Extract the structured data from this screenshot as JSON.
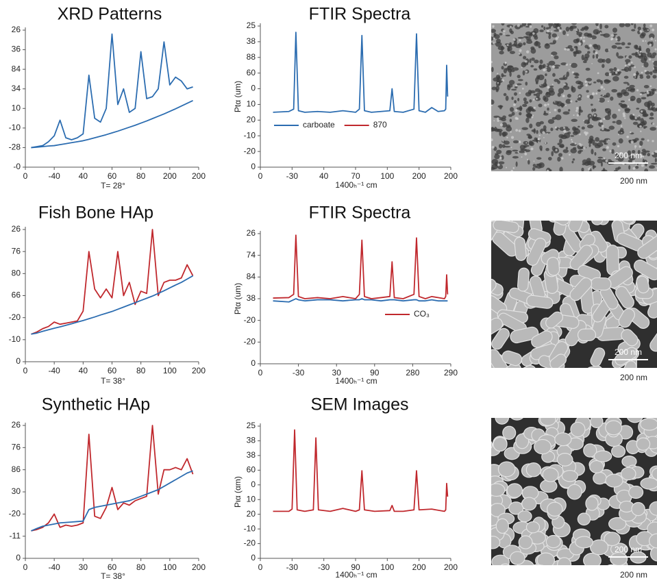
{
  "chart_data": [
    {
      "type": "line",
      "title": "XRD Patterns",
      "xlabel": "T= 28°",
      "x": [
        0.2,
        0.4,
        0.6,
        0.8,
        1.0,
        1.2,
        1.4,
        1.6,
        1.8,
        2.0,
        2.2,
        2.4,
        2.6,
        2.8,
        3.0,
        3.2,
        3.4,
        3.6,
        3.8,
        4.0,
        4.2,
        4.4,
        4.6,
        4.8,
        5.0,
        5.2,
        5.4,
        5.6,
        5.8
      ],
      "series": [
        {
          "color": "#2b6cb0",
          "values": [
            1.0,
            1.05,
            1.1,
            1.3,
            1.6,
            2.4,
            1.5,
            1.4,
            1.5,
            1.7,
            4.7,
            2.5,
            2.3,
            3.0,
            6.8,
            3.2,
            4.0,
            2.8,
            3.0,
            5.9,
            3.5,
            3.6,
            4.0,
            6.4,
            4.2,
            4.6,
            4.4,
            4.0,
            4.1
          ]
        },
        {
          "color": "#2b6cb0",
          "values": [
            1.0,
            1.02,
            1.05,
            1.08,
            1.1,
            1.15,
            1.2,
            1.25,
            1.3,
            1.35,
            1.42,
            1.5,
            1.58,
            1.66,
            1.75,
            1.84,
            1.94,
            2.04,
            2.14,
            2.25,
            2.36,
            2.48,
            2.6,
            2.72,
            2.85,
            2.98,
            3.12,
            3.26,
            3.4
          ]
        }
      ],
      "xlim": [
        0,
        6
      ],
      "ylim": [
        0,
        7
      ],
      "xticks": [
        {
          "value": 0,
          "label": "0"
        },
        {
          "value": 1,
          "label": "-40"
        },
        {
          "value": 2,
          "label": "40"
        },
        {
          "value": 3,
          "label": "60"
        },
        {
          "value": 4,
          "label": "80"
        },
        {
          "value": 5,
          "label": "200"
        },
        {
          "value": 6,
          "label": "200"
        }
      ],
      "yticks": [
        {
          "value": 0,
          "label": "-0"
        },
        {
          "value": 1,
          "label": "-28"
        },
        {
          "value": 2,
          "label": "-10"
        },
        {
          "value": 3,
          "label": "10"
        },
        {
          "value": 4,
          "label": "34"
        },
        {
          "value": 5,
          "label": "84"
        },
        {
          "value": 6,
          "label": "36"
        },
        {
          "value": 7,
          "label": "26"
        }
      ]
    },
    {
      "type": "line",
      "title": "FTIR Spectra",
      "xlabel": "1400ₕ⁻¹ cm",
      "ylabel": "Ptα (um)",
      "x": [
        0.4,
        0.9,
        1.05,
        1.12,
        1.2,
        1.4,
        1.8,
        2.2,
        2.6,
        3.0,
        3.12,
        3.2,
        3.28,
        3.5,
        3.8,
        4.08,
        4.15,
        4.22,
        4.5,
        4.84,
        4.92,
        5.0,
        5.2,
        5.4,
        5.6,
        5.8,
        5.84,
        5.87,
        5.9
      ],
      "series": [
        {
          "color": "#2b6cb0",
          "values": [
            3.5,
            3.55,
            3.7,
            8.6,
            3.6,
            3.5,
            3.55,
            3.5,
            3.6,
            3.5,
            3.7,
            8.4,
            3.6,
            3.5,
            3.55,
            3.6,
            5.0,
            3.55,
            3.5,
            3.7,
            8.5,
            3.6,
            3.5,
            3.8,
            3.55,
            3.6,
            3.7,
            6.5,
            4.5
          ]
        }
      ],
      "legend": [
        {
          "name": "carboate",
          "color": "#2b6cb0"
        },
        {
          "name": "870",
          "color": "#c0282d"
        }
      ],
      "xlim": [
        0,
        6
      ],
      "ylim": [
        0,
        9
      ],
      "xticks": [
        {
          "value": 0,
          "label": "0"
        },
        {
          "value": 1,
          "label": "-30"
        },
        {
          "value": 2,
          "label": "40"
        },
        {
          "value": 3,
          "label": "70"
        },
        {
          "value": 4,
          "label": "100"
        },
        {
          "value": 5,
          "label": "200"
        },
        {
          "value": 6,
          "label": "200"
        }
      ],
      "yticks": [
        {
          "value": 0,
          "label": "0"
        },
        {
          "value": 1,
          "label": "-20"
        },
        {
          "value": 2,
          "label": "-10"
        },
        {
          "value": 3,
          "label": "20"
        },
        {
          "value": 4,
          "label": "10"
        },
        {
          "value": 5,
          "label": "0"
        },
        {
          "value": 6,
          "label": "60"
        },
        {
          "value": 7,
          "label": "88"
        },
        {
          "value": 8,
          "label": "38"
        },
        {
          "value": 9,
          "label": "25"
        }
      ]
    },
    {
      "type": "line",
      "title": "Fish Bone HAp",
      "xlabel": "T= 38°",
      "x": [
        0.2,
        0.4,
        0.6,
        0.8,
        1.0,
        1.2,
        1.4,
        1.6,
        1.8,
        2.0,
        2.2,
        2.4,
        2.6,
        2.8,
        3.0,
        3.2,
        3.4,
        3.6,
        3.8,
        4.0,
        4.2,
        4.4,
        4.6,
        4.8,
        5.0,
        5.2,
        5.4,
        5.6,
        5.8
      ],
      "series": [
        {
          "color": "#c0282d",
          "values": [
            1.25,
            1.35,
            1.5,
            1.6,
            1.8,
            1.7,
            1.75,
            1.8,
            1.85,
            2.3,
            5.0,
            3.3,
            2.9,
            3.3,
            2.9,
            5.0,
            3.0,
            3.6,
            2.6,
            3.2,
            3.1,
            6.0,
            3.0,
            3.6,
            3.7,
            3.7,
            3.8,
            4.4,
            3.9
          ]
        },
        {
          "color": "#2b6cb0",
          "values": [
            1.25,
            1.3,
            1.38,
            1.45,
            1.52,
            1.58,
            1.65,
            1.72,
            1.8,
            1.87,
            1.95,
            2.03,
            2.12,
            2.2,
            2.28,
            2.38,
            2.48,
            2.58,
            2.68,
            2.78,
            2.88,
            2.98,
            3.1,
            3.22,
            3.35,
            3.48,
            3.6,
            3.75,
            3.9
          ]
        }
      ],
      "xlim": [
        0,
        6
      ],
      "ylim": [
        0,
        6
      ],
      "xticks": [
        {
          "value": 0,
          "label": "0"
        },
        {
          "value": 1,
          "label": "-40"
        },
        {
          "value": 2,
          "label": "40"
        },
        {
          "value": 3,
          "label": "60"
        },
        {
          "value": 4,
          "label": "80"
        },
        {
          "value": 5,
          "label": "100"
        },
        {
          "value": 6,
          "label": "200"
        }
      ],
      "yticks": [
        {
          "value": 0,
          "label": "0"
        },
        {
          "value": 1,
          "label": "-10"
        },
        {
          "value": 2,
          "label": "-20"
        },
        {
          "value": 3,
          "label": "66"
        },
        {
          "value": 4,
          "label": "80"
        },
        {
          "value": 5,
          "label": "76"
        },
        {
          "value": 6,
          "label": "26"
        }
      ]
    },
    {
      "type": "line",
      "title": "FTIR Spectra",
      "xlabel": "1400ₕ⁻¹ cm",
      "ylabel": "Ptα (um)",
      "x": [
        0.4,
        0.9,
        1.05,
        1.12,
        1.2,
        1.4,
        1.8,
        2.2,
        2.6,
        3.0,
        3.12,
        3.2,
        3.28,
        3.5,
        3.8,
        4.08,
        4.15,
        4.22,
        4.5,
        4.84,
        4.92,
        5.0,
        5.2,
        5.4,
        5.6,
        5.8,
        5.84,
        5.87,
        5.9
      ],
      "series": [
        {
          "color": "#2b6cb0",
          "values": [
            2.9,
            2.85,
            2.95,
            3.0,
            2.95,
            2.9,
            2.95,
            2.95,
            2.9,
            2.95,
            2.95,
            3.0,
            2.95,
            2.95,
            2.9,
            2.95,
            2.95,
            2.95,
            2.9,
            2.95,
            2.95,
            2.9,
            2.9,
            2.95,
            2.9,
            2.9,
            2.9,
            2.9,
            2.9
          ]
        },
        {
          "name": "CO₃",
          "color": "#c0282d",
          "values": [
            3.03,
            3.05,
            3.2,
            5.93,
            3.1,
            3.0,
            3.05,
            3.0,
            3.1,
            3.0,
            3.2,
            5.7,
            3.1,
            3.0,
            3.05,
            3.1,
            4.7,
            3.05,
            3.0,
            3.2,
            5.8,
            3.1,
            3.0,
            3.1,
            3.05,
            3.0,
            3.1,
            4.1,
            3.2
          ]
        }
      ],
      "xlim": [
        0,
        6
      ],
      "ylim": [
        0,
        6
      ],
      "xticks": [
        {
          "value": 0,
          "label": "0"
        },
        {
          "value": 1.2,
          "label": "-30"
        },
        {
          "value": 2.4,
          "label": "30"
        },
        {
          "value": 3.6,
          "label": "90"
        },
        {
          "value": 4.8,
          "label": "280"
        },
        {
          "value": 6,
          "label": "290"
        }
      ],
      "yticks": [
        {
          "value": 0,
          "label": "0"
        },
        {
          "value": 1,
          "label": "-20"
        },
        {
          "value": 2,
          "label": "-20"
        },
        {
          "value": 3,
          "label": "38"
        },
        {
          "value": 4,
          "label": "84"
        },
        {
          "value": 5,
          "label": "74"
        },
        {
          "value": 6,
          "label": "26"
        }
      ]
    },
    {
      "type": "line",
      "title": "Synthetic HAp",
      "xlabel": "T= 38°",
      "x": [
        0.2,
        0.4,
        0.6,
        0.8,
        1.0,
        1.2,
        1.4,
        1.6,
        1.8,
        2.0,
        2.2,
        2.4,
        2.6,
        2.8,
        3.0,
        3.2,
        3.4,
        3.6,
        3.8,
        4.0,
        4.2,
        4.4,
        4.6,
        4.8,
        5.0,
        5.2,
        5.4,
        5.6,
        5.8
      ],
      "series": [
        {
          "color": "#c0282d",
          "values": [
            1.24,
            1.3,
            1.4,
            1.6,
            2.0,
            1.4,
            1.5,
            1.45,
            1.5,
            1.6,
            5.6,
            1.9,
            1.8,
            2.3,
            3.2,
            2.2,
            2.5,
            2.4,
            2.6,
            2.7,
            2.8,
            6.0,
            2.9,
            4.0,
            4.0,
            4.1,
            4.0,
            4.5,
            3.8
          ]
        },
        {
          "color": "#2b6cb0",
          "values": [
            1.24,
            1.35,
            1.45,
            1.5,
            1.55,
            1.6,
            1.62,
            1.64,
            1.66,
            1.68,
            2.2,
            2.3,
            2.35,
            2.4,
            2.45,
            2.5,
            2.55,
            2.6,
            2.7,
            2.8,
            2.9,
            3.0,
            3.1,
            3.25,
            3.4,
            3.55,
            3.7,
            3.85,
            3.95
          ]
        }
      ],
      "xlim": [
        0,
        6
      ],
      "ylim": [
        0,
        6
      ],
      "xticks": [
        {
          "value": 0,
          "label": "0"
        },
        {
          "value": 1,
          "label": "-40"
        },
        {
          "value": 2,
          "label": "30"
        },
        {
          "value": 3,
          "label": "60"
        },
        {
          "value": 4,
          "label": "80"
        },
        {
          "value": 5,
          "label": "100"
        },
        {
          "value": 6,
          "label": "200"
        }
      ],
      "yticks": [
        {
          "value": 0,
          "label": "0"
        },
        {
          "value": 1,
          "label": "-11"
        },
        {
          "value": 2,
          "label": "-20"
        },
        {
          "value": 3,
          "label": "30"
        },
        {
          "value": 4,
          "label": "86"
        },
        {
          "value": 5,
          "label": "76"
        },
        {
          "value": 6,
          "label": "26"
        }
      ]
    },
    {
      "type": "line",
      "title": "SEM Images",
      "xlabel": "1400ₕ⁻¹ cm",
      "ylabel": "Pια (αm)",
      "x": [
        0.4,
        0.9,
        1.0,
        1.08,
        1.16,
        1.4,
        1.67,
        1.75,
        1.83,
        2.2,
        2.6,
        3.0,
        3.12,
        3.2,
        3.28,
        3.6,
        4.08,
        4.15,
        4.22,
        4.5,
        4.84,
        4.92,
        5.0,
        5.4,
        5.8,
        5.84,
        5.87,
        5.9
      ],
      "series": [
        {
          "color": "#c0282d",
          "values": [
            3.2,
            3.2,
            3.35,
            8.74,
            3.3,
            3.2,
            3.3,
            8.2,
            3.3,
            3.2,
            3.4,
            3.2,
            3.3,
            5.96,
            3.3,
            3.2,
            3.25,
            3.6,
            3.2,
            3.2,
            3.3,
            5.96,
            3.3,
            3.35,
            3.2,
            3.3,
            5.1,
            4.2
          ]
        }
      ],
      "xlim": [
        0,
        6
      ],
      "ylim": [
        0,
        9
      ],
      "xticks": [
        {
          "value": 0,
          "label": "0"
        },
        {
          "value": 1,
          "label": "-30"
        },
        {
          "value": 2,
          "label": "-30"
        },
        {
          "value": 3,
          "label": "90"
        },
        {
          "value": 4,
          "label": "100"
        },
        {
          "value": 5,
          "label": "200"
        },
        {
          "value": 6,
          "label": "200"
        }
      ],
      "yticks": [
        {
          "value": 0,
          "label": "0"
        },
        {
          "value": 1,
          "label": "-20"
        },
        {
          "value": 2,
          "label": "-10"
        },
        {
          "value": 3,
          "label": "20"
        },
        {
          "value": 4,
          "label": "10"
        },
        {
          "value": 5,
          "label": "0"
        },
        {
          "value": 6,
          "label": "60"
        },
        {
          "value": 7,
          "label": "38"
        },
        {
          "value": 8,
          "label": "38"
        },
        {
          "value": 9,
          "label": "25"
        }
      ]
    }
  ],
  "images": [
    {
      "scale_bar": "200 nm",
      "caption": "200 nm"
    },
    {
      "scale_bar": "200 nm",
      "caption": "200 nm"
    },
    {
      "scale_bar": "200 nm",
      "caption": "200 nm"
    }
  ]
}
